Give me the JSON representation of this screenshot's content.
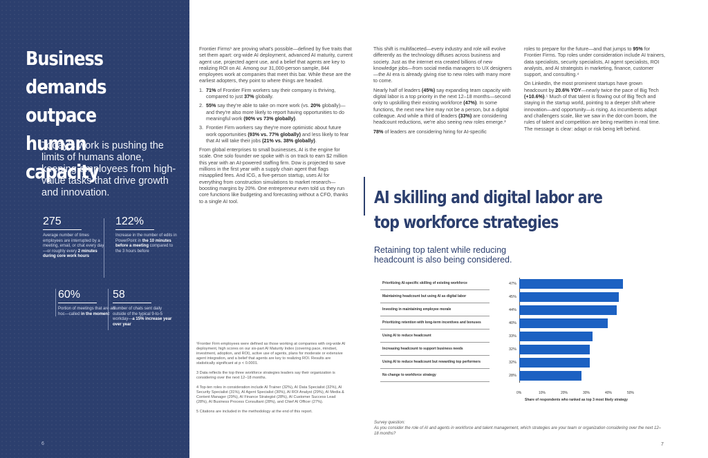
{
  "left": {
    "title": "Business\ndemands outpace\nhuman capacity",
    "subtitle": "Today's work is pushing the limits of humans alone, keeping employees from high-value tasks that drive growth and innovation.",
    "stats": [
      {
        "value": "275",
        "desc_html": "Average number of times employees are interrupted by a meeting, email, or chat every day—or roughly every <b>2 minutes during core work hours</b>"
      },
      {
        "value": "122%",
        "desc_html": "Increase in the number of edits in PowerPoint in <b>the 10 minutes before a meeting</b> compared to the 3 hours before"
      },
      {
        "value": "60%",
        "desc_html": "Portion of meetings that are ad hoc—called <b>in the moment</b>"
      },
      {
        "value": "58",
        "desc_html": "Number of chats sent daily outside of the typical 9-to-5 workday—<b>a 15% increase year over year</b>"
      }
    ],
    "page_number": "6"
  },
  "middle": {
    "intro": "Frontier Firms¹ are proving what's possible—defined by five traits that set them apart: org-wide AI deployment, advanced AI maturity, current agent use, projected agent use, and a belief that agents are key to realizing ROI on AI. Among our 31,000-person sample, 844 employees work at companies that meet this bar. While these are the earliest adopters, they point to where things are headed.",
    "list": [
      {
        "n": "1.",
        "html": "<b>71%</b> of Frontier Firm workers say their company is thriving, compared to just <b>37%</b> globally."
      },
      {
        "n": "2.",
        "html": "<b>55%</b> say they're able to take on more work (vs. <b>20%</b> globally)—and they're also more likely to report having opportunities to do meaningful work <b>(90% vs 73% globally)</b>."
      },
      {
        "n": "3.",
        "html": "Frontier Firm workers say they're more optimistic about future work opportunities <b>(93% vs. 77% globally)</b> and less likely to fear that AI will take their jobs <b>(21% vs. 38% globally)</b>."
      }
    ],
    "para2": "From global enterprises to small businesses, AI is the engine for scale. One solo founder we spoke with is on track to earn $2 million this year with an AI-powered staffing firm. Dow is projected to save millions in the first year with a supply chain agent that flags misapplied fees. And ICG, a five-person startup, uses AI for everything from construction simulations to market research—boosting margins by 20%. One entrepreneur even told us they run core functions like budgeting and forecasting without a CFO, thanks to a single AI tool.",
    "footnotes": [
      "¹Frontier Firm employees were defined as those working at companies with org-wide AI deployment, high scores on our six-part AI Maturity Index (covering pace, mindset, investment, adoption, and ROI), active use of agents, plans for moderate or extensive agent integration, and a belief that agents are key to realizing ROI. Results are statistically significant at p < 0.0001.",
      "3 Data reflects the top three workforce strategies leaders say their organization is considering over the next 12–18 months.",
      "4 Top-ten roles in consideration include AI Trainer (32%), AI Data Specialist (32%), AI Security Specialist (31%), AI Agent Specialist (30%), AI ROI Analyst (29%), AI Media & Content Manager (29%), AI Finance Strategist (28%), AI Customer Success Lead (28%), AI Business Process Consultant (28%), and Chief AI Officer (27%).",
      "5 Citations are included in the methodology at the end of this report."
    ]
  },
  "right": {
    "col_a": [
      "This shift is multifaceted—every industry and role will evolve differently as the technology diffuses across business and society. Just as the internet era created billions of new knowledge jobs—from social media managers to UX designers—the AI era is already giving rise to new roles with many more to come.",
      "Nearly half of leaders <b>(45%)</b> say expanding team capacity with digital labor is a top priority in the next 12–18 months—second only to upskilling their existing workforce <b>(47%)</b>. In some functions, the next new hire may not be a person, but a digital colleague. And while a third of leaders <b>(33%)</b> are considering headcount reductions, we're also seeing new roles emerge.³",
      "<b>78%</b> of leaders are considering hiring for AI-specific"
    ],
    "col_b": [
      "roles to prepare for the future—and that jumps to <b>95%</b> for Frontier Firms. Top roles under consideration include AI trainers, data specialists, security specialists, AI agent specialists, ROI analysts, and AI strategists in marketing, finance, customer support, and consulting.⁴",
      "On LinkedIn, the most prominent startups have grown headcount by <b>20.6% YOY</b>—nearly twice the pace of Big Tech <b>(+10.6%)</b>.⁵ Much of that talent is flowing out of Big Tech and staying in the startup world, pointing to a deeper shift where innovation—and opportunity—is rising. As incumbents adapt and challengers scale, like we saw in the dot-com boom, the rules of talent and competition are being rewritten in real time. The message is clear: adapt or risk being left behind."
    ],
    "section_title": "AI skilling and digital labor are top workforce strategies",
    "section_subtitle": "Retaining top talent while reducing headcount is also being considered.",
    "survey_label": "Survey question:",
    "survey_text": "As you consider the role of AI and agents in workforce and talent management, which strategies are your team or organization considering over the next 12–18 months?",
    "page_number": "7"
  },
  "chart_data": {
    "type": "bar",
    "orientation": "horizontal",
    "categories": [
      "Prioritizing AI-specific skilling of existing workforce",
      "Maintaining headcount but using AI as digital labor",
      "Investing in maintaining employee morale",
      "Prioritizing retention with long-term incentives and bonuses",
      "Using AI to reduce headcount",
      "Increasing headcount to support business needs",
      "Using AI to reduce headcount but rewarding top performers",
      "No change to workforce strategy"
    ],
    "values": [
      47,
      45,
      44,
      40,
      33,
      32,
      32,
      28
    ],
    "value_labels": [
      "47%",
      "45%",
      "44%",
      "40%",
      "33%",
      "32%",
      "32%",
      "28%"
    ],
    "ticks": [
      "0%",
      "10%",
      "20%",
      "30%",
      "40%",
      "50%"
    ],
    "xlim": [
      0,
      50
    ],
    "xlabel": "Share of respondents who ranked as top 3 most likely strategy",
    "color": "#1c61c2"
  }
}
